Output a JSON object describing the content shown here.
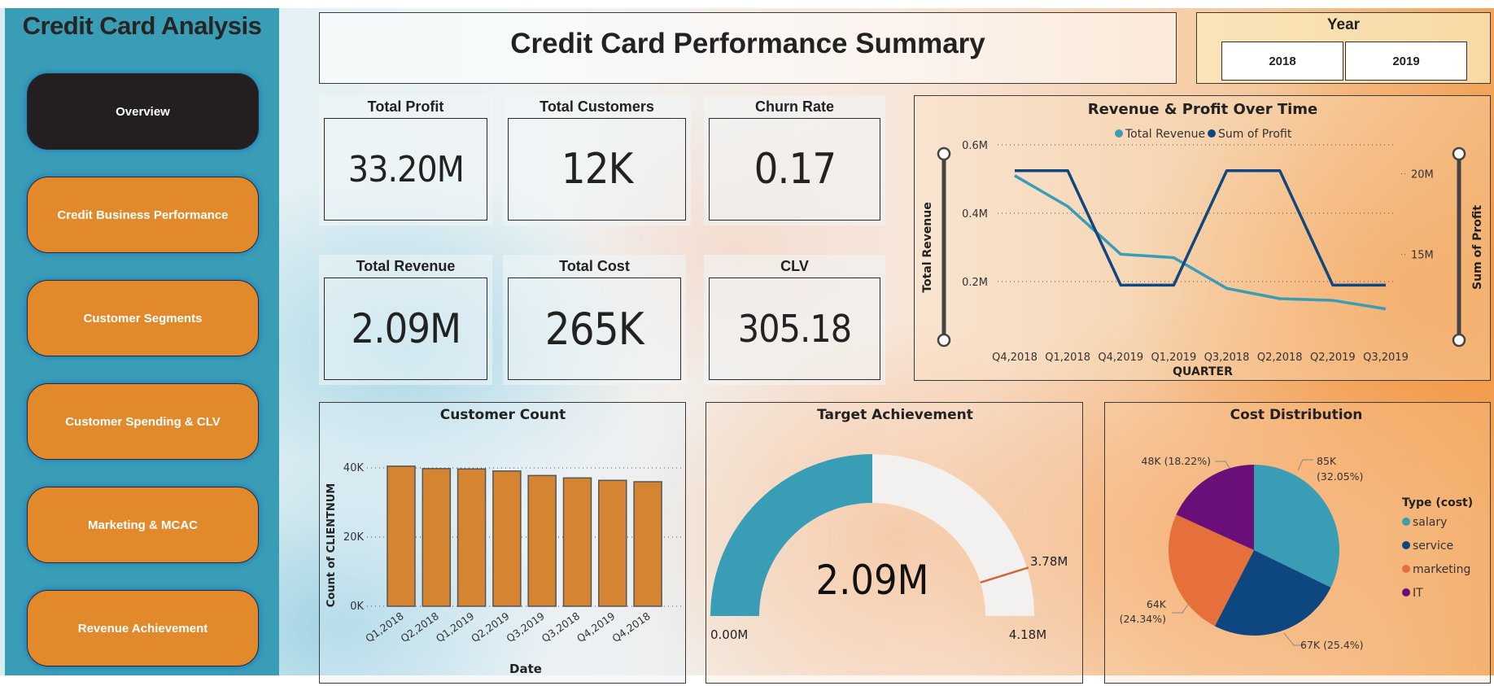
{
  "sidebar": {
    "title": "Credit Card Analysis",
    "items": [
      {
        "label": "Overview",
        "active": true
      },
      {
        "label": "Credit Business Performance",
        "active": false
      },
      {
        "label": "Customer Segments",
        "active": false
      },
      {
        "label": "Customer Spending & CLV",
        "active": false
      },
      {
        "label": "Marketing & MCAC",
        "active": false
      },
      {
        "label": "Revenue Achievement",
        "active": false
      }
    ]
  },
  "header": {
    "title": "Credit Card Performance Summary"
  },
  "year_slicer": {
    "title": "Year",
    "options": [
      "2018",
      "2019"
    ]
  },
  "kpis": [
    {
      "label": "Total Profit",
      "value": "33.20M"
    },
    {
      "label": "Total Customers",
      "value": "12K"
    },
    {
      "label": "Churn Rate",
      "value": "0.17"
    },
    {
      "label": "Total Revenue",
      "value": "2.09M"
    },
    {
      "label": "Total Cost",
      "value": "265K"
    },
    {
      "label": "CLV",
      "value": "305.18"
    }
  ],
  "colors": {
    "teal": "#3a9db6",
    "navy": "#12467e",
    "orange_bar": "#d58532",
    "marketing": "#e5703b",
    "it": "#6a0f7a",
    "salary": "#3a9db6",
    "service": "#0e4680",
    "gauge_bg": "#f3f1ef",
    "target_line": "#d2643a"
  },
  "chart_data": [
    {
      "id": "revenue_profit",
      "type": "line",
      "title": "Revenue & Profit Over Time",
      "legend": [
        "Total Revenue",
        "Sum of Profit"
      ],
      "legend_position": "top-center",
      "xlabel": "QUARTER",
      "ylabel": "Total Revenue",
      "y2label": "Sum of Profit",
      "categories": [
        "Q4,2018",
        "Q1,2018",
        "Q4,2019",
        "Q1,2019",
        "Q3,2018",
        "Q2,2018",
        "Q2,2019",
        "Q3,2019"
      ],
      "y_ticks": [
        {
          "v": 0.2,
          "label": "0.2M"
        },
        {
          "v": 0.4,
          "label": "0.4M"
        },
        {
          "v": 0.6,
          "label": "0.6M"
        }
      ],
      "y2_ticks": [
        {
          "v": 15,
          "label": "15M"
        },
        {
          "v": 20,
          "label": "20M"
        }
      ],
      "ylim": [
        0.1,
        0.6
      ],
      "y2lim": [
        11.2,
        21.8
      ],
      "series": [
        {
          "name": "Total Revenue",
          "axis": "left",
          "unit": "M",
          "values": [
            0.51,
            0.42,
            0.28,
            0.27,
            0.18,
            0.15,
            0.145,
            0.12
          ]
        },
        {
          "name": "Sum of Profit",
          "axis": "right",
          "unit": "M",
          "values": [
            20.2,
            20.2,
            13.1,
            13.1,
            20.2,
            20.2,
            13.1,
            13.1
          ]
        }
      ],
      "grid": true
    },
    {
      "id": "customer_count",
      "type": "bar",
      "title": "Customer Count",
      "xlabel": "Date",
      "ylabel": "Count of CLIENTNUM",
      "categories": [
        "Q1,2018",
        "Q2,2018",
        "Q1,2019",
        "Q2,2019",
        "Q3,2019",
        "Q3,2018",
        "Q4,2019",
        "Q4,2018"
      ],
      "values": [
        40500,
        39800,
        39700,
        39100,
        37800,
        37100,
        36400,
        36000
      ],
      "y_ticks": [
        {
          "v": 0,
          "label": "0K"
        },
        {
          "v": 20000,
          "label": "20K"
        },
        {
          "v": 40000,
          "label": "40K"
        }
      ],
      "ylim": [
        0,
        40000
      ],
      "grid": true
    },
    {
      "id": "target_achievement",
      "type": "gauge",
      "title": "Target Achievement",
      "value": 2.09,
      "value_label": "2.09M",
      "min": 0,
      "min_label": "0.00M",
      "max": 4.18,
      "max_label": "4.18M",
      "target": 3.78,
      "target_label": "3.78M"
    },
    {
      "id": "cost_distribution",
      "type": "pie",
      "title": "Cost Distribution",
      "legend_title": "Type (cost)",
      "legend_position": "right",
      "slices": [
        {
          "name": "salary",
          "value": 85,
          "label": "85K",
          "pct": "(32.05%)"
        },
        {
          "name": "service",
          "value": 67,
          "label": "67K (25.4%)",
          "pct": ""
        },
        {
          "name": "marketing",
          "value": 64,
          "label": "64K",
          "pct": "(24.34%)"
        },
        {
          "name": "IT",
          "value": 48,
          "label": "48K (18.22%)",
          "pct": ""
        }
      ]
    }
  ]
}
